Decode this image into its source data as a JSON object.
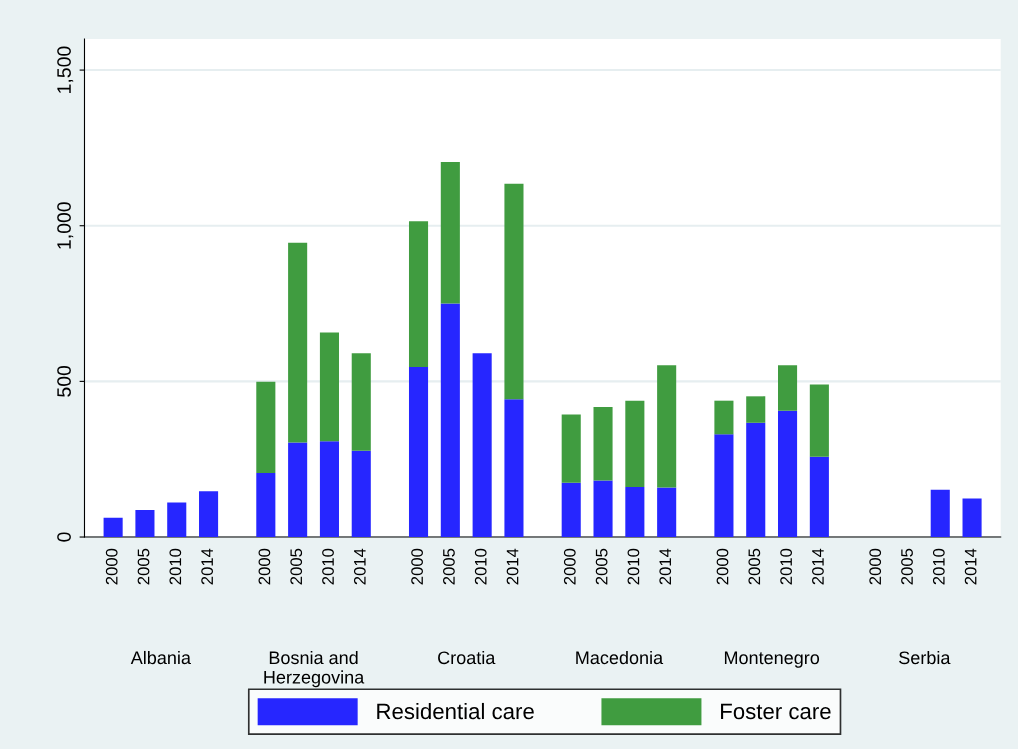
{
  "chart_data": {
    "type": "bar",
    "stacked": true,
    "categories": [
      "2000",
      "2005",
      "2010",
      "2014",
      "2000",
      "2005",
      "2010",
      "2014",
      "2000",
      "2005",
      "2010",
      "2014",
      "2000",
      "2005",
      "2010",
      "2014",
      "2000",
      "2005",
      "2010",
      "2014",
      "2000",
      "2005",
      "2010",
      "2014"
    ],
    "annotations": [
      "Albania",
      "Bosnia and Herzegovina",
      "Croatia",
      "Macedonia",
      "Montenegro",
      "Serbia"
    ],
    "series": [
      {
        "name": "Residential care",
        "color": "#2626ff",
        "values": [
          62,
          87,
          111,
          147,
          206,
          304,
          308,
          277,
          546,
          750,
          590,
          443,
          174,
          182,
          161,
          159,
          330,
          367,
          406,
          258,
          null,
          null,
          152,
          124
        ]
      },
      {
        "name": "Foster care",
        "color": "#409c40",
        "values": [
          null,
          null,
          null,
          null,
          293,
          641,
          349,
          313,
          468,
          455,
          null,
          692,
          220,
          236,
          277,
          393,
          108,
          85,
          146,
          232,
          null,
          null,
          null,
          null
        ]
      }
    ],
    "ylim": [
      0,
      1600
    ],
    "yticks": [
      {
        "value": 0,
        "label": "0"
      },
      {
        "value": 500,
        "label": "500"
      },
      {
        "value": 1000,
        "label": "1,000"
      },
      {
        "value": 1500,
        "label": "1,500"
      }
    ],
    "grid": "y",
    "legend": "bottom"
  }
}
